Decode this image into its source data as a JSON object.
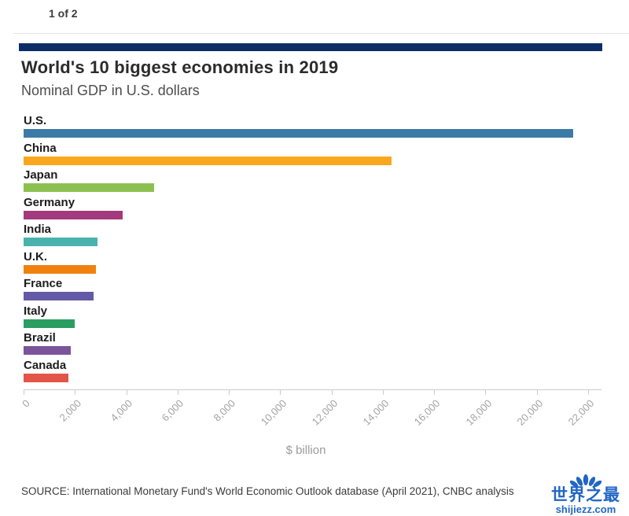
{
  "pagination": {
    "label": "1 of 2"
  },
  "accent": {
    "top_bar_color": "#0d2d66"
  },
  "header": {
    "title": "World's 10 biggest economies in 2019",
    "subtitle": "Nominal GDP in U.S. dollars"
  },
  "chart_data": {
    "type": "bar",
    "orientation": "horizontal",
    "title": "World's 10 biggest economies in 2019",
    "subtitle": "Nominal GDP in U.S. dollars",
    "xlabel": "$ billion",
    "xlim": [
      0,
      22000
    ],
    "tick_interval": 2000,
    "xticks": [
      "0",
      "2,000",
      "4,000",
      "6,000",
      "8,000",
      "10,000",
      "12,000",
      "14,000",
      "16,000",
      "18,000",
      "20,000",
      "22,000"
    ],
    "categories": [
      "U.S.",
      "China",
      "Japan",
      "Germany",
      "India",
      "U.K.",
      "France",
      "Italy",
      "Brazil",
      "Canada"
    ],
    "values": [
      21433,
      14340,
      5082,
      3846,
      2871,
      2827,
      2716,
      2001,
      1839,
      1736
    ],
    "colors": [
      "#3d7ba6",
      "#f9a81e",
      "#8cc152",
      "#a23a7d",
      "#49b2ad",
      "#f0810f",
      "#6459a7",
      "#2b9d61",
      "#7c5499",
      "#e25548"
    ],
    "grid": false,
    "legend": false
  },
  "footer": {
    "source": "SOURCE: International Monetary Fund's World Economic Outlook database (April 2021), CNBC analysis"
  },
  "watermark": {
    "text_primary": "世界之最",
    "text_secondary": "shijiezz.com",
    "color": "#2166c4"
  }
}
